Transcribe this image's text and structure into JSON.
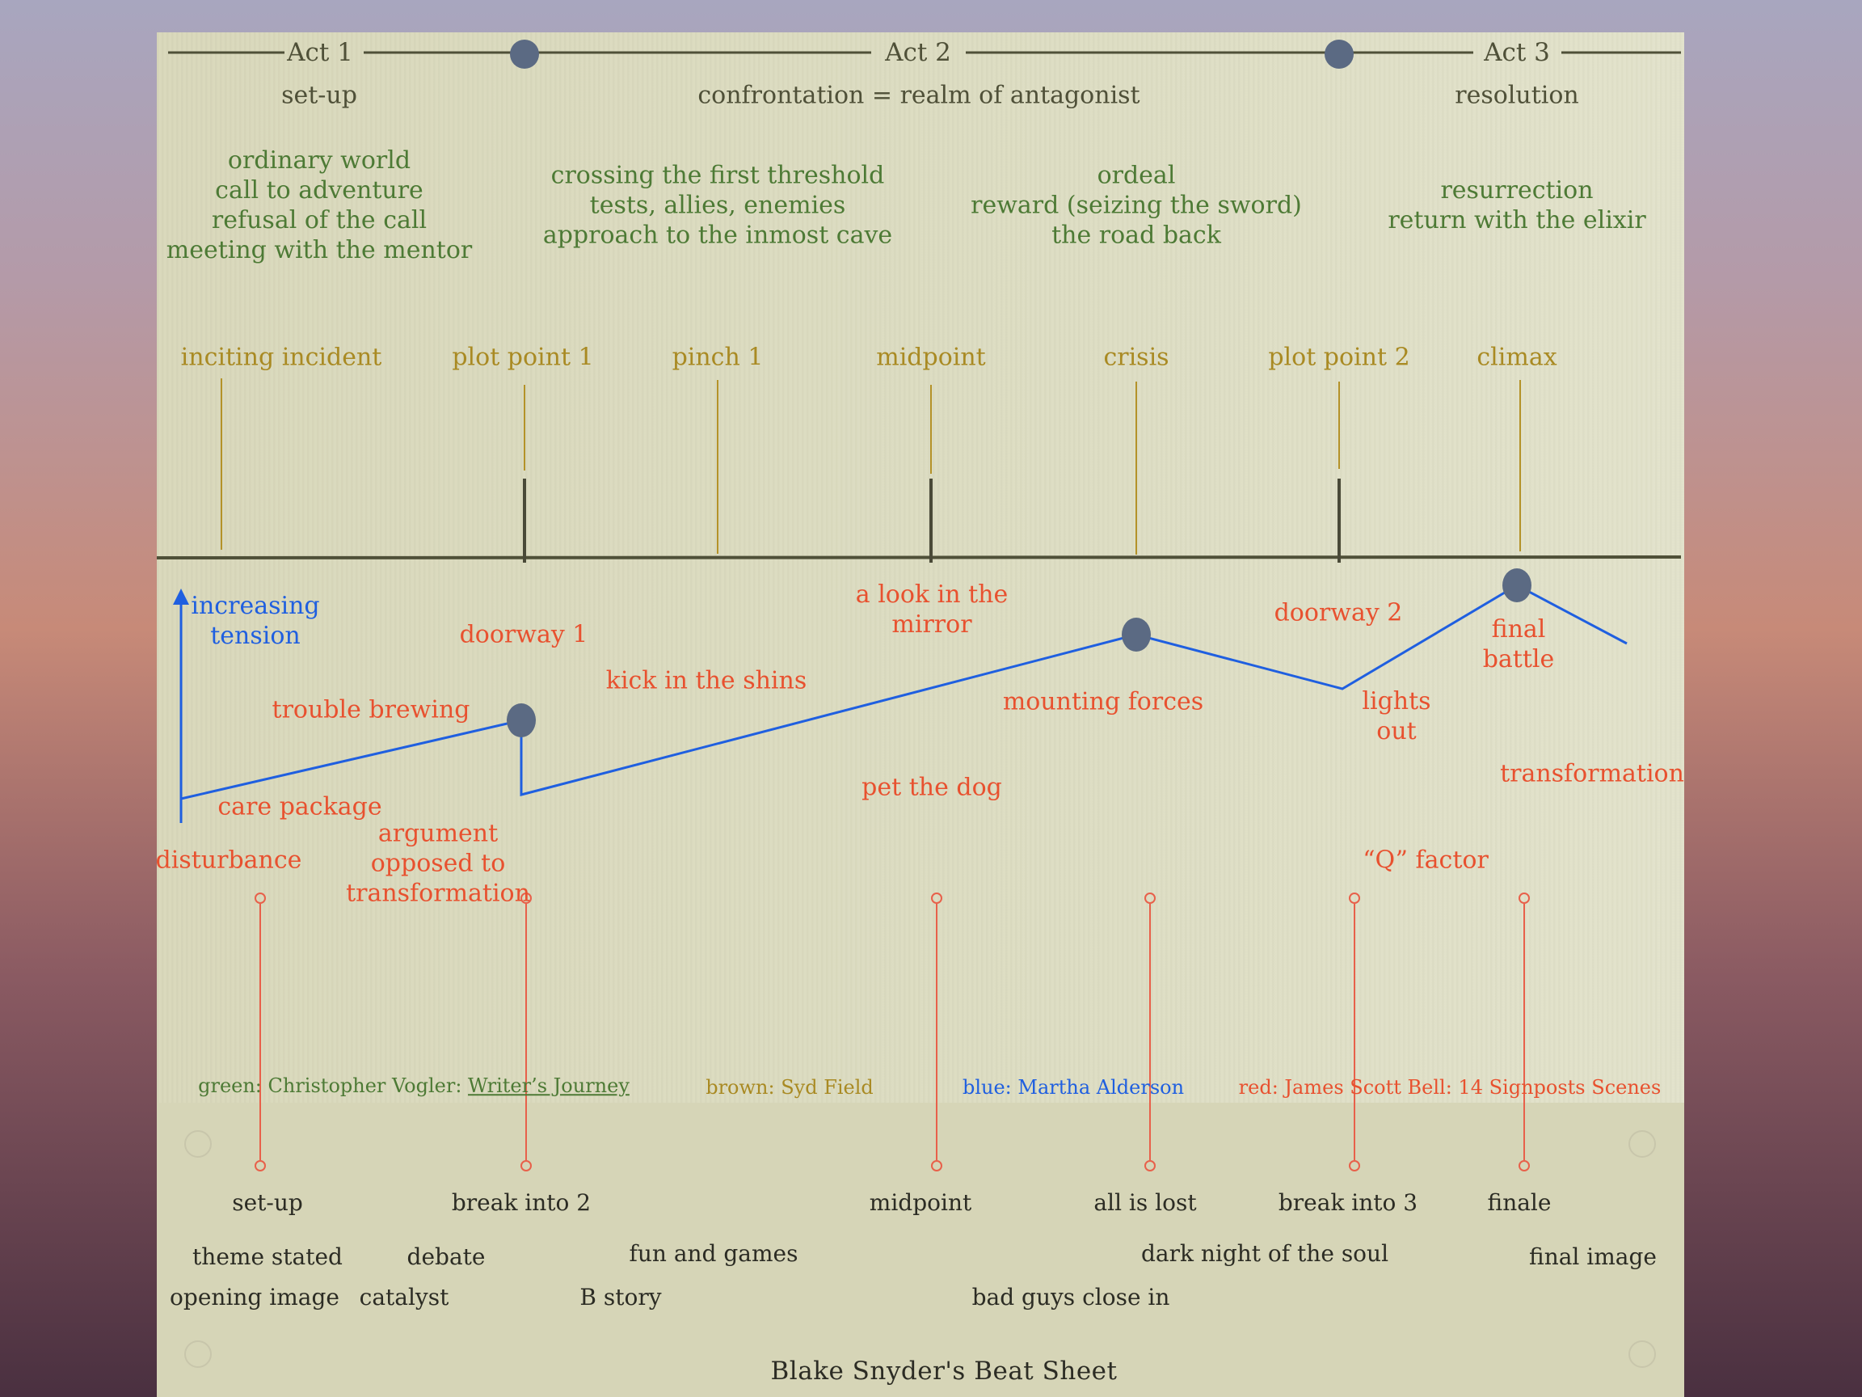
{
  "acts": [
    {
      "label": "Act 1",
      "subtitle": "set-up"
    },
    {
      "label": "Act 2",
      "subtitle": "confrontation = realm of antagonist"
    },
    {
      "label": "Act 3",
      "subtitle": "resolution"
    }
  ],
  "vogler": [
    "ordinary world\ncall to adventure\nrefusal of the call\nmeeting with the mentor",
    "crossing the first threshold\ntests, allies, enemies\napproach to the inmost cave",
    "ordeal\nreward (seizing the sword)\nthe road back",
    "resurrection\nreturn with the elixir"
  ],
  "field": [
    "inciting incident",
    "plot point 1",
    "pinch 1",
    "midpoint",
    "crisis",
    "plot point 2",
    "climax"
  ],
  "alderson": {
    "label": "increasing\ntension"
  },
  "bell": [
    "doorway 1",
    "trouble brewing",
    "kick in the shins",
    "a look in the\nmirror",
    "mounting forces",
    "doorway 2",
    "final\nbattle",
    "lights\nout",
    "care package",
    "pet the dog",
    "transformation",
    "disturbance",
    "argument\nopposed to\ntransformation",
    "“Q” factor"
  ],
  "legend": {
    "green_prefix": "green: Christopher Vogler: ",
    "green_book": "Writer’s Journey",
    "brown": "brown: Syd Field",
    "blue": "blue: Martha Alderson",
    "red": "red: James Scott Bell: 14 Signposts Scenes"
  },
  "snyder": {
    "row1": [
      "set-up",
      "break into 2",
      "midpoint",
      "all is lost",
      "break into 3",
      "finale"
    ],
    "row2": [
      "theme stated",
      "debate",
      "fun and games",
      "dark night of the soul",
      "final image"
    ],
    "row3": [
      "opening image",
      "catalyst",
      "B story",
      "bad guys close in"
    ],
    "title": "Blake Snyder's Beat Sheet"
  },
  "colors": {
    "vogler": "#4d7a35",
    "field": "#a98a23",
    "alderson": "#1f5fe0",
    "bell": "#e8512f",
    "act_line": "#4f5038",
    "node": "#5b6a83"
  }
}
